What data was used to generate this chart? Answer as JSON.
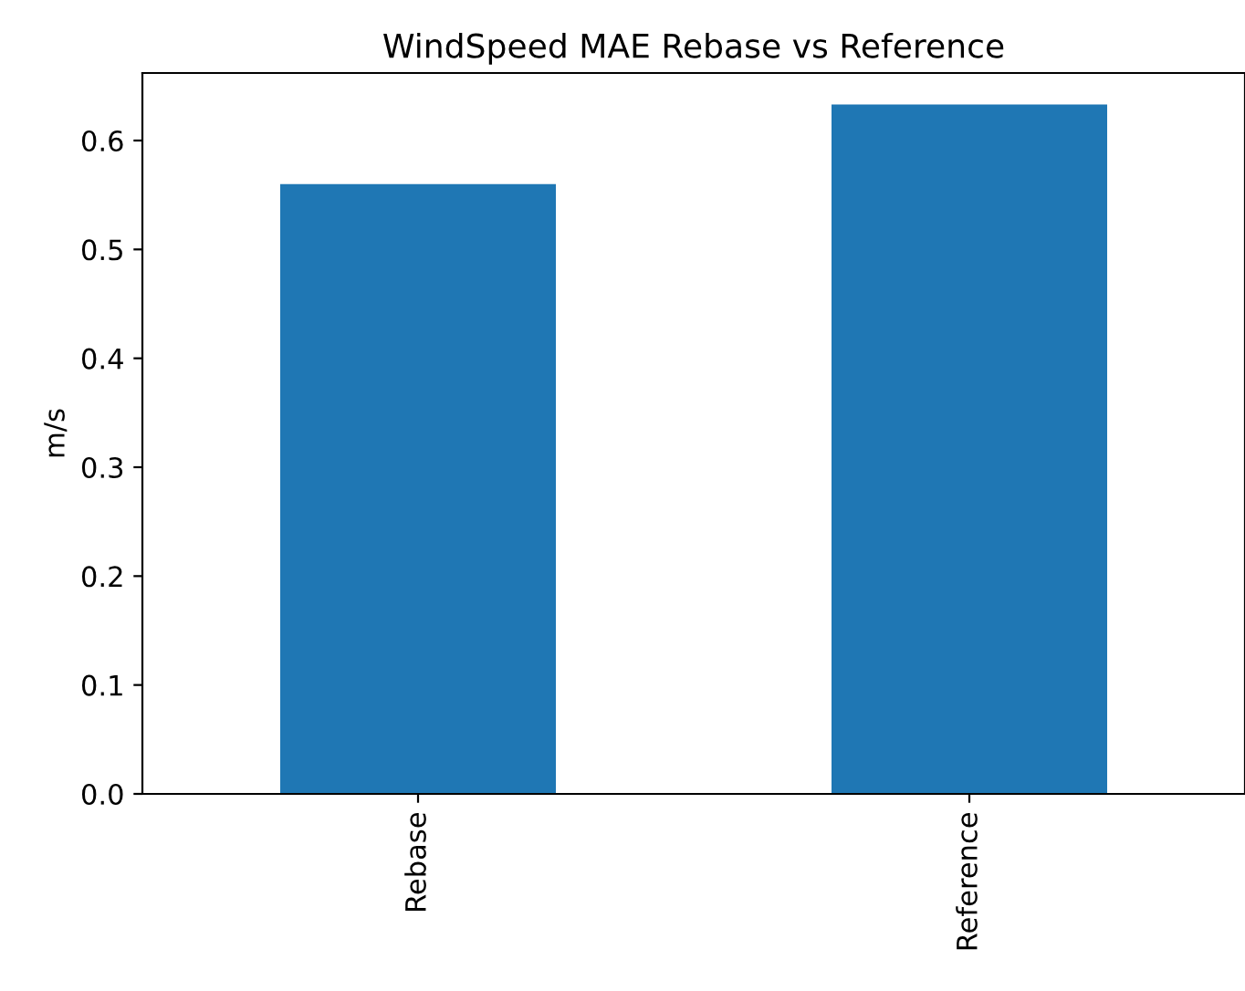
{
  "chart_data": {
    "type": "bar",
    "title": "WindSpeed MAE Rebase vs Reference",
    "ylabel": "m/s",
    "categories": [
      "Rebase",
      "Reference"
    ],
    "values": [
      0.56,
      0.633
    ],
    "color": "#1f77b4",
    "ylim": [
      0,
      0.662
    ],
    "yticks": [
      {
        "value": 0,
        "label": "0.0"
      },
      0.1,
      0.2,
      0.3,
      0.4,
      0.5,
      0.6
    ],
    "grid": false,
    "legend": false
  }
}
